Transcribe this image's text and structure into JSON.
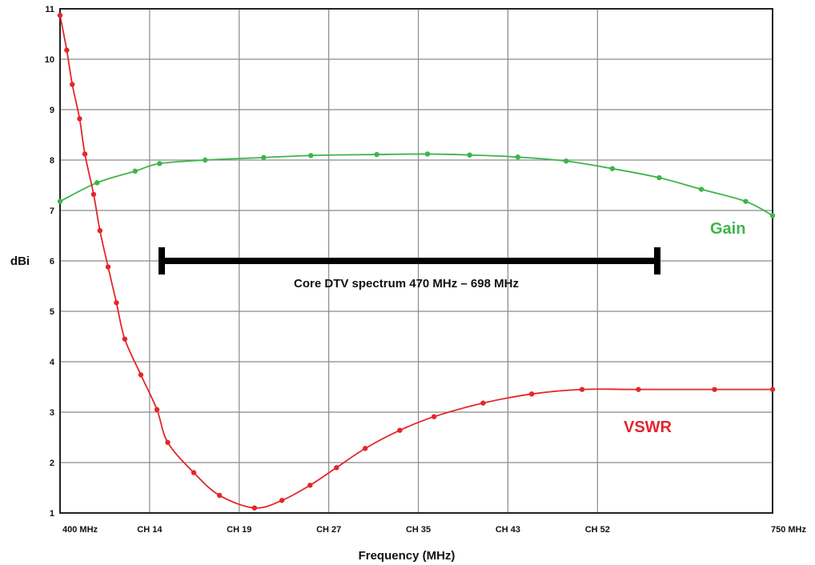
{
  "chart_data": {
    "type": "line",
    "xlabel": "Frequency (MHz)",
    "ylabel": "dBi",
    "xlim": [
      400,
      750
    ],
    "ylim": [
      1,
      11
    ],
    "x_ticks": [
      {
        "label": "400 MHz",
        "x": 400
      },
      {
        "label": "CH 14",
        "x": 444
      },
      {
        "label": "CH 19",
        "x": 488
      },
      {
        "label": "CH 27",
        "x": 532
      },
      {
        "label": "CH 35",
        "x": 576
      },
      {
        "label": "CH 43",
        "x": 620
      },
      {
        "label": "CH 52",
        "x": 664
      },
      {
        "label": "750 MHz",
        "x": 750
      }
    ],
    "y_ticks": [
      "1",
      "2",
      "3",
      "4",
      "5",
      "6",
      "7",
      "8",
      "9",
      "10",
      "11"
    ],
    "grid": true,
    "series": [
      {
        "name": "Gain",
        "color": "#3db54a",
        "x": [
          400,
          418.2,
          436.9,
          448.9,
          471.3,
          500,
          523.2,
          555.6,
          580.5,
          601.2,
          624.9,
          648.6,
          671.3,
          694.3,
          715.0,
          736.8,
          757.6
        ],
        "values": [
          7.18,
          7.55,
          7.78,
          7.93,
          8.0,
          8.05,
          8.09,
          8.11,
          8.12,
          8.1,
          8.06,
          7.98,
          7.83,
          7.65,
          7.42,
          7.18,
          6.9
        ]
      },
      {
        "name": "VSWR",
        "color": "#e3262b",
        "x": [
          400,
          403.3,
          406.0,
          409.6,
          412.2,
          416.5,
          419.6,
          423.6,
          427.7,
          431.8,
          439.7,
          447.6,
          452.9,
          465.7,
          478.3,
          495.5,
          509.0,
          522.8,
          535.8,
          549.9,
          566.9,
          583.7,
          607.8,
          631.7,
          656.4,
          684.1,
          721.5,
          753.2
        ],
        "values": [
          10.87,
          10.18,
          9.5,
          8.82,
          8.12,
          7.32,
          6.6,
          5.88,
          5.17,
          4.45,
          3.74,
          3.05,
          2.4,
          1.8,
          1.35,
          1.1,
          1.25,
          1.55,
          1.9,
          2.28,
          2.64,
          2.91,
          3.18,
          3.36,
          3.45,
          3.45,
          3.45,
          3.45
        ]
      }
    ],
    "series_labels": {
      "gain": "Gain",
      "vswr": "VSWR"
    },
    "annotation": {
      "text": "Core DTV spectrum 470 MHz – 698 MHz",
      "from": 470,
      "to": 698,
      "y": 6.0
    }
  }
}
